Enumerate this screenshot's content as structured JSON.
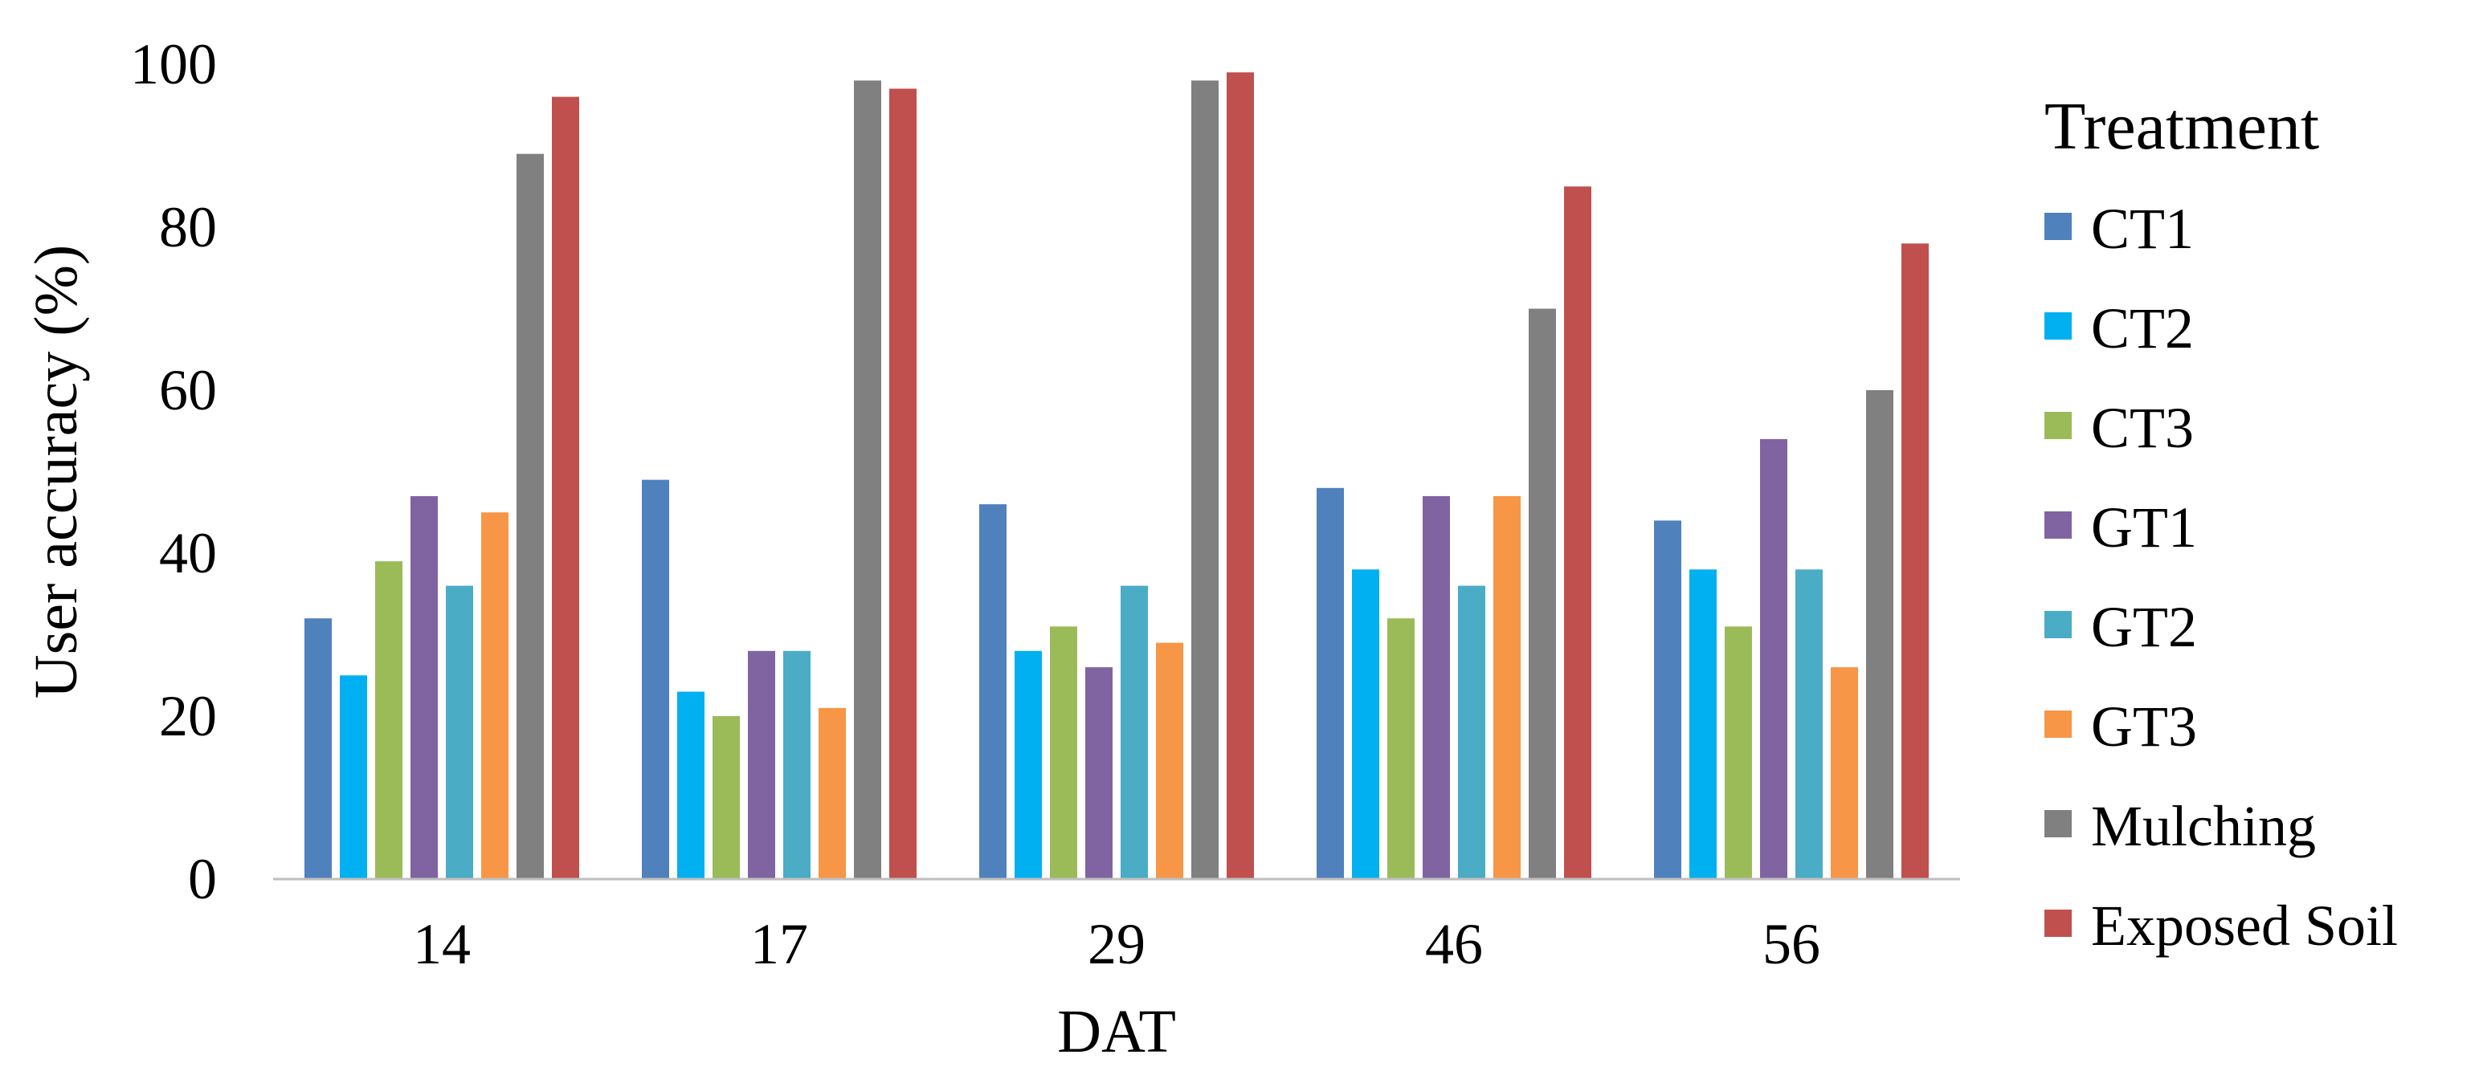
{
  "chart_data": {
    "type": "bar",
    "title": "",
    "xlabel": "DAT",
    "ylabel": "User accuracy (%)",
    "ylim": [
      0,
      100
    ],
    "yticks": [
      0,
      20,
      40,
      60,
      80,
      100
    ],
    "grid": false,
    "legend_position": "right",
    "legend_title": "Treatment",
    "categories": [
      "14",
      "17",
      "29",
      "46",
      "56"
    ],
    "series": [
      {
        "name": "CT1",
        "color": "#4F81BD",
        "values": [
          32,
          49,
          46,
          48,
          44
        ]
      },
      {
        "name": "CT2",
        "color": "#00B0F0",
        "values": [
          25,
          23,
          28,
          38,
          38
        ]
      },
      {
        "name": "CT3",
        "color": "#9BBB59",
        "values": [
          39,
          20,
          31,
          32,
          31
        ]
      },
      {
        "name": "GT1",
        "color": "#8064A2",
        "values": [
          47,
          28,
          26,
          47,
          54
        ]
      },
      {
        "name": "GT2",
        "color": "#4BACC6",
        "values": [
          36,
          28,
          36,
          36,
          38
        ]
      },
      {
        "name": "GT3",
        "color": "#F79646",
        "values": [
          45,
          21,
          29,
          47,
          26
        ]
      },
      {
        "name": "Mulching",
        "color": "#808080",
        "values": [
          89,
          98,
          98,
          70,
          60
        ]
      },
      {
        "name": "Exposed Soil",
        "color": "#C0504D",
        "values": [
          96,
          97,
          99,
          85,
          78
        ]
      }
    ]
  }
}
